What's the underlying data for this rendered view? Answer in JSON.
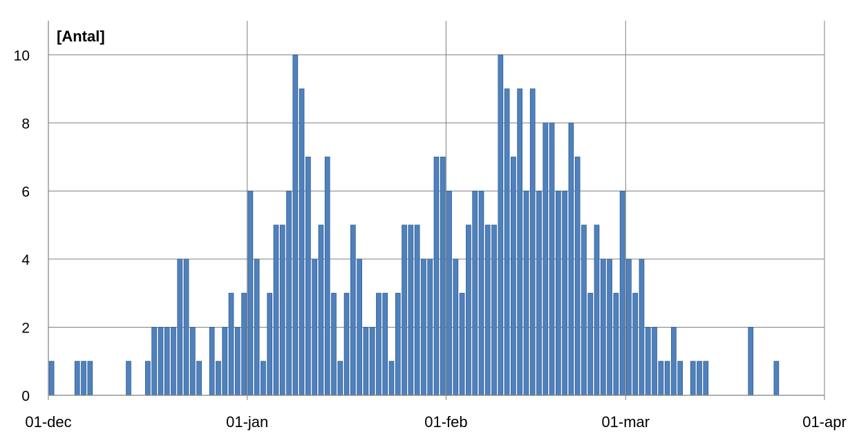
{
  "chart_data": {
    "type": "bar",
    "title": "",
    "xlabel": "",
    "ylabel": "[Antal]",
    "ylim": [
      0,
      11
    ],
    "xlim": [
      "2022-12-01",
      "2023-04-01"
    ],
    "yticks": [
      0,
      2,
      4,
      6,
      8,
      10
    ],
    "xticks": [
      "2022-12-01",
      "2023-01-01",
      "2023-02-01",
      "2023-03-01",
      "2023-04-01"
    ],
    "xtick_labels": [
      "01-dec",
      "01-jan",
      "01-feb",
      "01-mar",
      "01-apr"
    ],
    "grid": true,
    "legend": "none",
    "bar_color": "#4f81bd",
    "bar_edge_color": "#2e5b93",
    "dates": [
      "2022-12-01",
      "2022-12-02",
      "2022-12-03",
      "2022-12-04",
      "2022-12-05",
      "2022-12-06",
      "2022-12-07",
      "2022-12-08",
      "2022-12-09",
      "2022-12-10",
      "2022-12-11",
      "2022-12-12",
      "2022-12-13",
      "2022-12-14",
      "2022-12-15",
      "2022-12-16",
      "2022-12-17",
      "2022-12-18",
      "2022-12-19",
      "2022-12-20",
      "2022-12-21",
      "2022-12-22",
      "2022-12-23",
      "2022-12-24",
      "2022-12-25",
      "2022-12-26",
      "2022-12-27",
      "2022-12-28",
      "2022-12-29",
      "2022-12-30",
      "2022-12-31",
      "2023-01-01",
      "2023-01-02",
      "2023-01-03",
      "2023-01-04",
      "2023-01-05",
      "2023-01-06",
      "2023-01-07",
      "2023-01-08",
      "2023-01-09",
      "2023-01-10",
      "2023-01-11",
      "2023-01-12",
      "2023-01-13",
      "2023-01-14",
      "2023-01-15",
      "2023-01-16",
      "2023-01-17",
      "2023-01-18",
      "2023-01-19",
      "2023-01-20",
      "2023-01-21",
      "2023-01-22",
      "2023-01-23",
      "2023-01-24",
      "2023-01-25",
      "2023-01-26",
      "2023-01-27",
      "2023-01-28",
      "2023-01-29",
      "2023-01-30",
      "2023-01-31",
      "2023-02-01",
      "2023-02-02",
      "2023-02-03",
      "2023-02-04",
      "2023-02-05",
      "2023-02-06",
      "2023-02-07",
      "2023-02-08",
      "2023-02-09",
      "2023-02-10",
      "2023-02-11",
      "2023-02-12",
      "2023-02-13",
      "2023-02-14",
      "2023-02-15",
      "2023-02-16",
      "2023-02-17",
      "2023-02-18",
      "2023-02-19",
      "2023-02-20",
      "2023-02-21",
      "2023-02-22",
      "2023-02-23",
      "2023-02-24",
      "2023-02-25",
      "2023-02-26",
      "2023-02-27",
      "2023-02-28",
      "2023-03-01",
      "2023-03-02",
      "2023-03-03",
      "2023-03-04",
      "2023-03-05",
      "2023-03-06",
      "2023-03-07",
      "2023-03-08",
      "2023-03-09",
      "2023-03-10",
      "2023-03-11",
      "2023-03-12",
      "2023-03-13",
      "2023-03-14",
      "2023-03-15",
      "2023-03-16",
      "2023-03-17",
      "2023-03-18",
      "2023-03-19",
      "2023-03-20",
      "2023-03-21",
      "2023-03-22",
      "2023-03-23",
      "2023-03-24",
      "2023-03-25",
      "2023-03-26",
      "2023-03-27",
      "2023-03-28",
      "2023-03-29",
      "2023-03-30",
      "2023-03-31"
    ],
    "values": [
      1,
      0,
      0,
      0,
      1,
      1,
      1,
      0,
      0,
      0,
      0,
      0,
      1,
      0,
      0,
      1,
      2,
      2,
      2,
      2,
      4,
      4,
      2,
      1,
      0,
      2,
      1,
      2,
      3,
      2,
      3,
      6,
      4,
      1,
      3,
      5,
      5,
      6,
      10,
      9,
      7,
      4,
      5,
      7,
      3,
      1,
      3,
      5,
      4,
      2,
      2,
      3,
      3,
      1,
      3,
      5,
      5,
      5,
      4,
      4,
      7,
      7,
      6,
      4,
      3,
      5,
      6,
      6,
      5,
      5,
      10,
      9,
      7,
      9,
      6,
      9,
      6,
      8,
      8,
      6,
      6,
      8,
      7,
      5,
      3,
      5,
      4,
      4,
      3,
      6,
      4,
      3,
      4,
      2,
      2,
      1,
      1,
      2,
      1,
      0,
      1,
      1,
      1,
      0,
      0,
      0,
      0,
      0,
      0,
      2,
      0,
      0,
      0,
      1,
      0,
      0,
      0,
      0,
      0,
      0,
      0
    ]
  }
}
